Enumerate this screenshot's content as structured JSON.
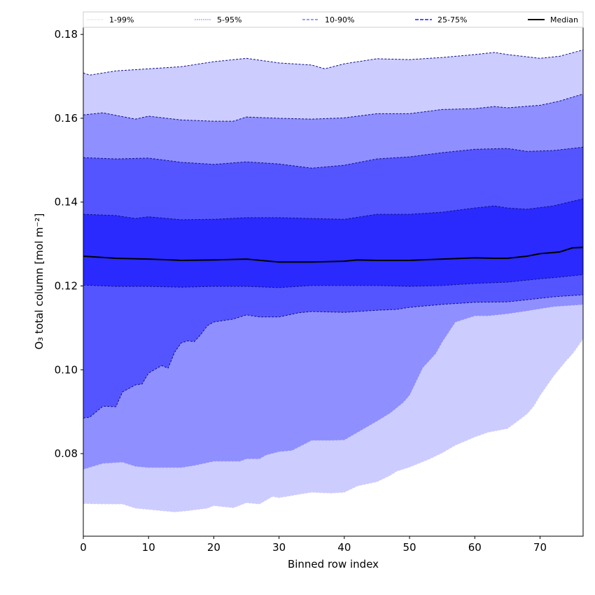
{
  "chart_data": {
    "type": "area",
    "title": "",
    "xlabel": "Binned row index",
    "ylabel": "O₃ total column [mol m⁻²]",
    "xlim": [
      0,
      76.6
    ],
    "ylim": [
      0.0603,
      0.1817
    ],
    "xticks": [
      0,
      10,
      20,
      30,
      40,
      50,
      60,
      70
    ],
    "xtick_labels": [
      "0",
      "10",
      "20",
      "30",
      "40",
      "50",
      "60",
      "70"
    ],
    "yticks": [
      0.08,
      0.1,
      0.12,
      0.14,
      0.16,
      0.18
    ],
    "ytick_labels": [
      "0.08",
      "0.10",
      "0.12",
      "0.14",
      "0.16",
      "0.18"
    ],
    "grid": false,
    "legend_placement": "top, above axes",
    "legend": [
      "1-99%",
      "5-95%",
      "10-90%",
      "25-75%",
      "Median"
    ],
    "bands": [
      {
        "name": "1-99%",
        "color": "#ccccff",
        "legend_color": "#ccccff",
        "lower": "p1",
        "upper": "p99"
      },
      {
        "name": "5-95%",
        "color": "#8f8fff",
        "legend_color": "#9f9fff",
        "lower": "p5",
        "upper": "p95"
      },
      {
        "name": "10-90%",
        "color": "#5555ff",
        "legend_color": "#7a7aff",
        "lower": "p10",
        "upper": "p90"
      },
      {
        "name": "25-75%",
        "color": "#2a2aff",
        "legend_color": "#5555ff",
        "lower": "p25",
        "upper": "p75"
      }
    ],
    "series": {
      "p99": {
        "x": [
          0,
          1,
          5,
          10,
          15,
          20,
          25,
          30,
          35,
          37,
          40,
          45,
          50,
          55,
          60,
          63,
          65,
          70,
          73,
          76.6
        ],
        "y": [
          0.1708,
          0.1703,
          0.1713,
          0.1718,
          0.1723,
          0.1735,
          0.1743,
          0.1732,
          0.1727,
          0.1718,
          0.173,
          0.1742,
          0.174,
          0.1745,
          0.1752,
          0.1757,
          0.1752,
          0.1743,
          0.1748,
          0.1763
        ]
      },
      "p95": {
        "x": [
          0,
          3,
          8,
          10,
          15,
          20,
          23,
          25,
          30,
          35,
          40,
          45,
          50,
          55,
          60,
          63,
          65,
          70,
          73,
          76.6
        ],
        "y": [
          0.1608,
          0.1613,
          0.1598,
          0.1605,
          0.1596,
          0.1593,
          0.1593,
          0.1603,
          0.16,
          0.1598,
          0.1601,
          0.1611,
          0.1611,
          0.1621,
          0.1623,
          0.1628,
          0.1625,
          0.1631,
          0.1641,
          0.1658
        ]
      },
      "p90": {
        "x": [
          0,
          5,
          10,
          15,
          20,
          25,
          30,
          35,
          40,
          45,
          50,
          55,
          60,
          65,
          68,
          72,
          76.6
        ],
        "y": [
          0.1506,
          0.1503,
          0.1505,
          0.1495,
          0.149,
          0.1496,
          0.1491,
          0.1481,
          0.1488,
          0.1503,
          0.1508,
          0.1518,
          0.1526,
          0.1528,
          0.1521,
          0.1523,
          0.1531
        ]
      },
      "p75": {
        "x": [
          0,
          5,
          8,
          10,
          15,
          20,
          25,
          30,
          35,
          40,
          45,
          50,
          55,
          60,
          63,
          65,
          68,
          72,
          76.6
        ],
        "y": [
          0.1371,
          0.1368,
          0.1361,
          0.1365,
          0.1358,
          0.1359,
          0.1363,
          0.1363,
          0.1361,
          0.1359,
          0.1371,
          0.1371,
          0.1376,
          0.1386,
          0.1391,
          0.1386,
          0.1383,
          0.1391,
          0.1408
        ]
      },
      "median": {
        "x": [
          0,
          5,
          10,
          15,
          20,
          25,
          30,
          35,
          40,
          42,
          45,
          50,
          55,
          60,
          63,
          65,
          68,
          70,
          73,
          75,
          76.6
        ],
        "y": [
          0.1271,
          0.1266,
          0.1264,
          0.1261,
          0.1262,
          0.1264,
          0.1257,
          0.1257,
          0.1259,
          0.1262,
          0.1261,
          0.1261,
          0.1264,
          0.1267,
          0.1266,
          0.1266,
          0.1271,
          0.1277,
          0.1281,
          0.1291,
          0.1292
        ]
      },
      "p25": {
        "x": [
          0,
          5,
          10,
          15,
          20,
          25,
          30,
          35,
          40,
          45,
          50,
          55,
          60,
          65,
          70,
          73,
          76.6
        ],
        "y": [
          0.1202,
          0.1199,
          0.1199,
          0.1197,
          0.1199,
          0.1199,
          0.1196,
          0.1201,
          0.1201,
          0.1201,
          0.1199,
          0.1201,
          0.1206,
          0.1209,
          0.1217,
          0.1221,
          0.1227
        ]
      },
      "p10": {
        "x": [
          0,
          1,
          3,
          5,
          6,
          8,
          9,
          10,
          12,
          13,
          14,
          15,
          16,
          17,
          18,
          19,
          20,
          23,
          25,
          27,
          30,
          33,
          35,
          40,
          45,
          48,
          50,
          55,
          60,
          65,
          68,
          72,
          76.6
        ],
        "y": [
          0.0885,
          0.0887,
          0.0913,
          0.0912,
          0.0947,
          0.0964,
          0.0966,
          0.0992,
          0.101,
          0.1004,
          0.1042,
          0.1064,
          0.1069,
          0.1067,
          0.1084,
          0.1105,
          0.1114,
          0.1121,
          0.1131,
          0.1126,
          0.1126,
          0.1136,
          0.1139,
          0.1137,
          0.1142,
          0.1144,
          0.1149,
          0.1156,
          0.1161,
          0.1162,
          0.1167,
          0.1174,
          0.1179
        ]
      },
      "p5": {
        "x": [
          0,
          3,
          6,
          8,
          10,
          15,
          17,
          20,
          24,
          25,
          27,
          28,
          30,
          32,
          35,
          38,
          40,
          42,
          45,
          47,
          49,
          50,
          52,
          54,
          55,
          57,
          60,
          62,
          65,
          68,
          70,
          72,
          76.6
        ],
        "y": [
          0.0763,
          0.0777,
          0.078,
          0.077,
          0.0767,
          0.0767,
          0.0772,
          0.0782,
          0.0782,
          0.0788,
          0.0788,
          0.0797,
          0.0805,
          0.0808,
          0.0832,
          0.0832,
          0.0833,
          0.0851,
          0.0878,
          0.0897,
          0.0922,
          0.094,
          0.1005,
          0.1039,
          0.1067,
          0.1114,
          0.1129,
          0.1129,
          0.1134,
          0.1141,
          0.1146,
          0.1151,
          0.1156
        ]
      },
      "p1": {
        "x": [
          0,
          3,
          6,
          8,
          10,
          14,
          16,
          19,
          20,
          23,
          25,
          27,
          29,
          30,
          33,
          35,
          38,
          40,
          42,
          45,
          47,
          48,
          50,
          53,
          55,
          57,
          60,
          62,
          64,
          65,
          67,
          68,
          69,
          70,
          72,
          74,
          75,
          76.6
        ],
        "y": [
          0.0681,
          0.068,
          0.068,
          0.067,
          0.0667,
          0.0661,
          0.0664,
          0.067,
          0.0676,
          0.0671,
          0.0683,
          0.068,
          0.0698,
          0.0695,
          0.0703,
          0.0708,
          0.0706,
          0.0708,
          0.0723,
          0.0733,
          0.0748,
          0.0758,
          0.0768,
          0.0787,
          0.0802,
          0.082,
          0.084,
          0.0851,
          0.0857,
          0.086,
          0.0883,
          0.0895,
          0.0913,
          0.0939,
          0.0984,
          0.1022,
          0.1039,
          0.1074
        ]
      }
    }
  }
}
